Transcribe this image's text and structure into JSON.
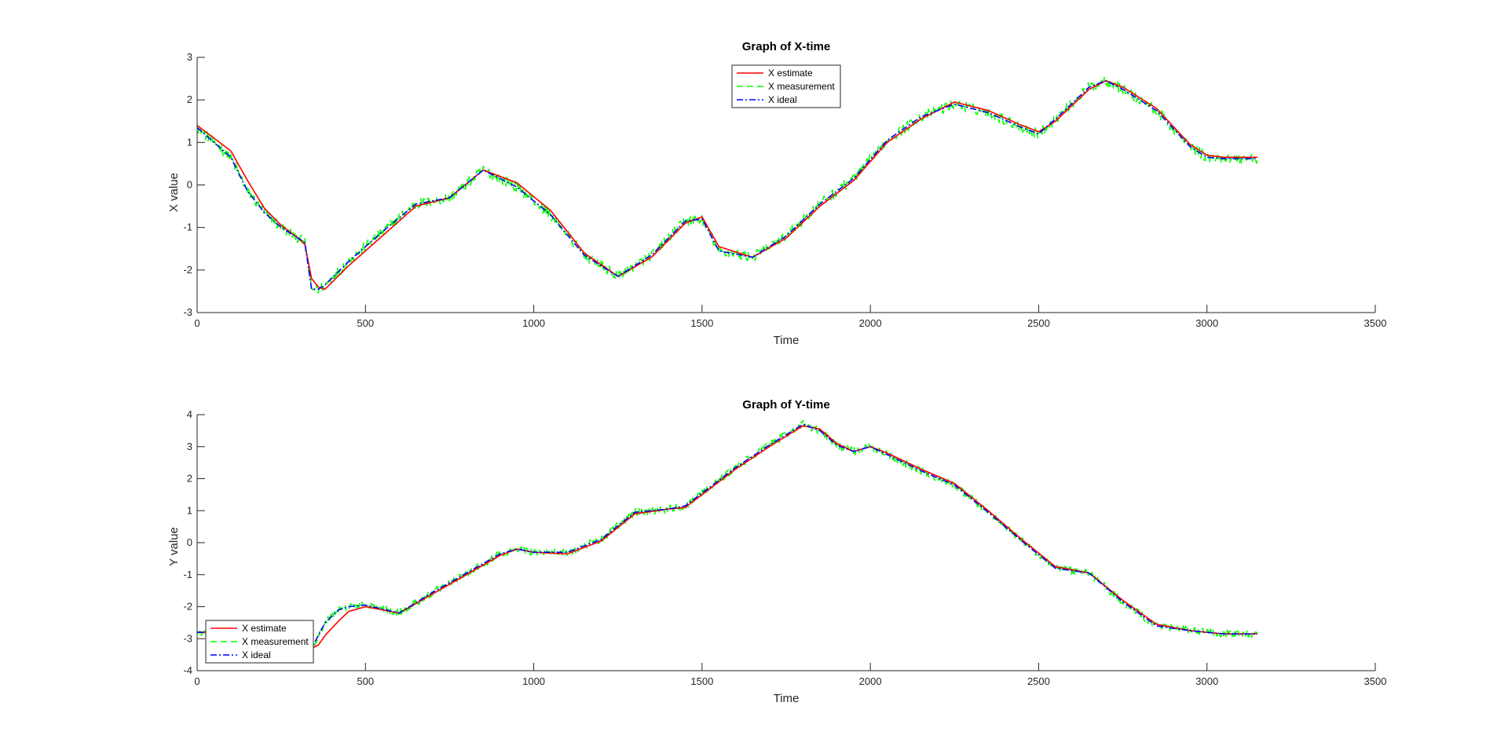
{
  "chart_data": [
    {
      "type": "line",
      "title": "Graph of X-time",
      "xlabel": "Time",
      "ylabel": "X value",
      "xlim": [
        0,
        3500
      ],
      "ylim": [
        -3,
        3
      ],
      "xticks": [
        "0",
        "500",
        "1000",
        "1500",
        "2000",
        "2500",
        "3000",
        "3500"
      ],
      "yticks": [
        "-3",
        "-2",
        "-1",
        "0",
        "1",
        "2",
        "3"
      ],
      "legend_position": "top-center",
      "series": [
        {
          "name": "X estimate",
          "color": "#ff0000",
          "style": "solid",
          "x": [
            0,
            50,
            100,
            150,
            200,
            250,
            300,
            320,
            340,
            360,
            380,
            450,
            550,
            650,
            750,
            850,
            950,
            1050,
            1150,
            1250,
            1350,
            1450,
            1500,
            1550,
            1650,
            1750,
            1850,
            1950,
            2050,
            2150,
            2250,
            2350,
            2450,
            2500,
            2550,
            2650,
            2700,
            2750,
            2850,
            2950,
            3000,
            3050,
            3150
          ],
          "y": [
            1.4,
            1.1,
            0.8,
            0.1,
            -0.55,
            -0.95,
            -1.25,
            -1.4,
            -2.2,
            -2.4,
            -2.45,
            -1.9,
            -1.2,
            -0.5,
            -0.3,
            0.35,
            0.05,
            -0.6,
            -1.6,
            -2.15,
            -1.7,
            -0.9,
            -0.75,
            -1.45,
            -1.7,
            -1.25,
            -0.5,
            0.1,
            1.0,
            1.55,
            1.95,
            1.75,
            1.4,
            1.25,
            1.5,
            2.25,
            2.45,
            2.3,
            1.8,
            0.95,
            0.7,
            0.65,
            0.65
          ]
        },
        {
          "name": "X measurement",
          "color": "#00ff00",
          "style": "dashed",
          "x": [
            0,
            50,
            100,
            150,
            200,
            250,
            300,
            320,
            340,
            360,
            380,
            450,
            550,
            650,
            750,
            850,
            950,
            1050,
            1150,
            1250,
            1350,
            1450,
            1500,
            1550,
            1650,
            1750,
            1850,
            1950,
            2050,
            2150,
            2250,
            2350,
            2450,
            2500,
            2550,
            2650,
            2700,
            2750,
            2850,
            2950,
            3000,
            3050,
            3150
          ],
          "y": [
            1.35,
            1.0,
            0.65,
            -0.15,
            -0.65,
            -1.0,
            -1.25,
            -1.35,
            -2.45,
            -2.45,
            -2.35,
            -1.8,
            -1.1,
            -0.45,
            -0.3,
            0.35,
            -0.05,
            -0.7,
            -1.65,
            -2.15,
            -1.65,
            -0.85,
            -0.8,
            -1.55,
            -1.7,
            -1.2,
            -0.45,
            0.15,
            1.05,
            1.6,
            1.9,
            1.7,
            1.35,
            1.2,
            1.55,
            2.3,
            2.45,
            2.25,
            1.75,
            0.9,
            0.65,
            0.62,
            0.62
          ],
          "noise": 0.12
        },
        {
          "name": "X ideal",
          "color": "#0000ff",
          "style": "dashdot",
          "x": [
            0,
            50,
            100,
            150,
            200,
            250,
            300,
            320,
            340,
            360,
            380,
            450,
            550,
            650,
            750,
            850,
            950,
            1050,
            1150,
            1250,
            1350,
            1450,
            1500,
            1550,
            1650,
            1750,
            1850,
            1950,
            2050,
            2150,
            2250,
            2350,
            2450,
            2500,
            2550,
            2650,
            2700,
            2750,
            2850,
            2950,
            3000,
            3050,
            3150
          ],
          "y": [
            1.35,
            1.0,
            0.65,
            -0.15,
            -0.65,
            -1.0,
            -1.25,
            -1.35,
            -2.45,
            -2.45,
            -2.35,
            -1.8,
            -1.1,
            -0.45,
            -0.3,
            0.35,
            -0.05,
            -0.7,
            -1.65,
            -2.15,
            -1.65,
            -0.85,
            -0.8,
            -1.55,
            -1.7,
            -1.2,
            -0.45,
            0.15,
            1.05,
            1.6,
            1.9,
            1.7,
            1.35,
            1.2,
            1.55,
            2.3,
            2.45,
            2.25,
            1.75,
            0.9,
            0.65,
            0.62,
            0.62
          ]
        }
      ]
    },
    {
      "type": "line",
      "title": "Graph of Y-time",
      "xlabel": "Time",
      "ylabel": "Y value",
      "xlim": [
        0,
        3500
      ],
      "ylim": [
        -4,
        4
      ],
      "xticks": [
        "0",
        "500",
        "1000",
        "1500",
        "2000",
        "2500",
        "3000",
        "3500"
      ],
      "yticks": [
        "-4",
        "-3",
        "-2",
        "-1",
        "0",
        "1",
        "2",
        "3",
        "4"
      ],
      "legend_position": "bottom-left",
      "series": [
        {
          "name": "X estimate",
          "color": "#ff0000",
          "style": "solid",
          "x": [
            0,
            100,
            200,
            300,
            330,
            340,
            360,
            380,
            420,
            450,
            500,
            600,
            700,
            800,
            900,
            950,
            1000,
            1100,
            1200,
            1300,
            1400,
            1450,
            1500,
            1600,
            1700,
            1800,
            1850,
            1900,
            1950,
            2000,
            2050,
            2150,
            2250,
            2350,
            2450,
            2550,
            2650,
            2750,
            2850,
            2950,
            3050,
            3150
          ],
          "y": [
            -2.8,
            -2.8,
            -2.85,
            -3.0,
            -3.1,
            -3.3,
            -3.2,
            -2.9,
            -2.45,
            -2.15,
            -2.0,
            -2.2,
            -1.6,
            -1.0,
            -0.4,
            -0.2,
            -0.3,
            -0.35,
            0.05,
            0.9,
            1.05,
            1.1,
            1.5,
            2.3,
            3.0,
            3.65,
            3.55,
            3.1,
            2.85,
            3.0,
            2.8,
            2.3,
            1.85,
            1.0,
            0.1,
            -0.75,
            -0.95,
            -1.8,
            -2.55,
            -2.75,
            -2.85,
            -2.85
          ]
        },
        {
          "name": "X measurement",
          "color": "#00ff00",
          "style": "dashed",
          "x": [
            0,
            100,
            200,
            300,
            330,
            340,
            360,
            380,
            420,
            450,
            500,
            600,
            700,
            800,
            900,
            950,
            1000,
            1100,
            1200,
            1300,
            1400,
            1450,
            1500,
            1600,
            1700,
            1800,
            1850,
            1900,
            1950,
            2000,
            2050,
            2150,
            2250,
            2350,
            2450,
            2550,
            2650,
            2750,
            2850,
            2950,
            3050,
            3150
          ],
          "y": [
            -2.8,
            -2.8,
            -2.85,
            -3.05,
            -3.15,
            -3.3,
            -2.9,
            -2.5,
            -2.1,
            -2.0,
            -1.95,
            -2.2,
            -1.55,
            -0.95,
            -0.35,
            -0.2,
            -0.3,
            -0.3,
            0.1,
            0.95,
            1.05,
            1.15,
            1.55,
            2.35,
            3.05,
            3.7,
            3.5,
            3.05,
            2.85,
            3.0,
            2.75,
            2.25,
            1.8,
            0.95,
            0.05,
            -0.8,
            -0.95,
            -1.85,
            -2.6,
            -2.75,
            -2.85,
            -2.85
          ],
          "noise": 0.12
        },
        {
          "name": "X ideal",
          "color": "#0000ff",
          "style": "dashdot",
          "x": [
            0,
            100,
            200,
            300,
            330,
            340,
            360,
            380,
            420,
            450,
            500,
            600,
            700,
            800,
            900,
            950,
            1000,
            1100,
            1200,
            1300,
            1400,
            1450,
            1500,
            1600,
            1700,
            1800,
            1850,
            1900,
            1950,
            2000,
            2050,
            2150,
            2250,
            2350,
            2450,
            2550,
            2650,
            2750,
            2850,
            2950,
            3050,
            3150
          ],
          "y": [
            -2.8,
            -2.8,
            -2.85,
            -3.05,
            -3.15,
            -3.3,
            -2.9,
            -2.5,
            -2.1,
            -2.0,
            -1.95,
            -2.2,
            -1.55,
            -0.95,
            -0.35,
            -0.2,
            -0.3,
            -0.3,
            0.1,
            0.95,
            1.05,
            1.15,
            1.55,
            2.35,
            3.05,
            3.7,
            3.5,
            3.05,
            2.85,
            3.0,
            2.75,
            2.25,
            1.8,
            0.95,
            0.05,
            -0.8,
            -0.95,
            -1.85,
            -2.6,
            -2.75,
            -2.85,
            -2.85
          ]
        }
      ]
    }
  ]
}
